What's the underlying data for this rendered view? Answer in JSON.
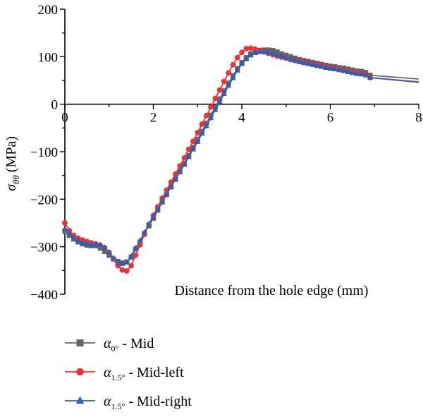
{
  "chart_data": {
    "type": "line",
    "xlabel": "Distance from the hole edge (mm)",
    "ylabel": "σθθ (MPa)",
    "ylabel_symbol": "σ",
    "ylabel_subscript": "θθ",
    "ylabel_unit": "(MPa)",
    "xlim": [
      0,
      8
    ],
    "ylim": [
      -400,
      200
    ],
    "x_ticks": [
      "0",
      "2",
      "4",
      "6",
      "8"
    ],
    "y_ticks": [
      "200",
      "100",
      "0",
      "−100",
      "−200",
      "−300",
      "−400"
    ],
    "x_axis_at_y": 0,
    "grid": false,
    "legend_position": "bottom-left, below plot",
    "series": [
      {
        "name": "α0° - Mid",
        "symbol": "α",
        "subscript": "0°",
        "suffix": " - Mid",
        "color": "#666666",
        "marker": "square",
        "x": [
          0,
          0.1,
          0.2,
          0.3,
          0.4,
          0.5,
          0.6,
          0.7,
          0.8,
          0.9,
          1.0,
          1.1,
          1.2,
          1.3,
          1.4,
          1.5,
          1.6,
          1.7,
          1.8,
          1.9,
          2.0,
          2.1,
          2.2,
          2.3,
          2.4,
          2.5,
          2.6,
          2.7,
          2.8,
          2.9,
          3.0,
          3.1,
          3.2,
          3.3,
          3.4,
          3.5,
          3.6,
          3.7,
          3.8,
          3.9,
          4.0,
          4.1,
          4.2,
          4.3,
          4.4,
          4.5,
          4.6,
          4.7,
          4.8,
          4.9,
          5.0,
          5.1,
          5.2,
          5.3,
          5.4,
          5.5,
          5.6,
          5.7,
          5.8,
          5.9,
          6.0,
          6.1,
          6.2,
          6.3,
          6.4,
          6.5,
          6.6,
          6.7,
          6.8,
          6.9,
          8.0
        ],
        "y": [
          -268,
          -276,
          -284,
          -290,
          -294,
          -297,
          -298,
          -298,
          -303,
          -310,
          -318,
          -326,
          -331,
          -334,
          -332,
          -322,
          -305,
          -290,
          -272,
          -256,
          -240,
          -223,
          -206,
          -190,
          -174,
          -158,
          -141,
          -125,
          -108,
          -91,
          -74,
          -57,
          -40,
          -23,
          -6,
          11,
          28,
          44,
          60,
          75,
          88,
          98,
          106,
          111,
          113,
          114,
          114,
          113,
          110,
          106,
          103,
          100,
          97,
          94,
          92,
          90,
          88,
          86,
          84,
          82,
          80,
          79,
          77,
          76,
          74,
          72,
          70,
          69,
          67,
          61,
          53
        ]
      },
      {
        "name": "α1.5° - Mid-left",
        "symbol": "α",
        "subscript": "1.5°",
        "suffix": " - Mid-left",
        "color": "#e8333b",
        "marker": "circle",
        "x": [
          0,
          0.1,
          0.2,
          0.3,
          0.4,
          0.5,
          0.6,
          0.7,
          0.8,
          0.9,
          1.0,
          1.1,
          1.2,
          1.3,
          1.4,
          1.5,
          1.6,
          1.7,
          1.8,
          1.9,
          2.0,
          2.1,
          2.2,
          2.3,
          2.4,
          2.5,
          2.6,
          2.7,
          2.8,
          2.9,
          3.0,
          3.1,
          3.2,
          3.3,
          3.4,
          3.5,
          3.6,
          3.7,
          3.8,
          3.9,
          4.0,
          4.1,
          4.2,
          4.3,
          4.4,
          4.5,
          4.6,
          4.7,
          4.8,
          4.9,
          5.0,
          5.1,
          5.2,
          5.3,
          5.4,
          5.5,
          5.6,
          5.7,
          5.8,
          5.9,
          6.0,
          6.1,
          6.2,
          6.3,
          6.4,
          6.5,
          6.6,
          6.7,
          6.8,
          6.9,
          8.0
        ],
        "y": [
          -250,
          -266,
          -276,
          -282,
          -286,
          -289,
          -292,
          -294,
          -297,
          -302,
          -312,
          -326,
          -340,
          -349,
          -351,
          -340,
          -318,
          -296,
          -274,
          -253,
          -234,
          -216,
          -198,
          -181,
          -164,
          -147,
          -130,
          -113,
          -95,
          -78,
          -60,
          -42,
          -24,
          -6,
          12,
          30,
          48,
          66,
          83,
          98,
          109,
          117,
          118,
          116,
          113,
          110,
          107,
          104,
          101,
          99,
          97,
          94,
          92,
          90,
          88,
          86,
          84,
          82,
          80,
          78,
          77,
          75,
          73,
          71,
          70,
          68,
          66,
          64,
          62,
          56,
          46
        ]
      },
      {
        "name": "α1.5° - Mid-right",
        "symbol": "α",
        "subscript": "1.5°",
        "suffix": " - Mid-right",
        "color": "#2f5fb3",
        "marker": "triangle",
        "x": [
          0,
          0.1,
          0.2,
          0.3,
          0.4,
          0.5,
          0.6,
          0.7,
          0.8,
          0.9,
          1.0,
          1.1,
          1.2,
          1.3,
          1.4,
          1.5,
          1.6,
          1.7,
          1.8,
          1.9,
          2.0,
          2.1,
          2.2,
          2.3,
          2.4,
          2.5,
          2.6,
          2.7,
          2.8,
          2.9,
          3.0,
          3.1,
          3.2,
          3.3,
          3.4,
          3.5,
          3.6,
          3.7,
          3.8,
          3.9,
          4.0,
          4.1,
          4.2,
          4.3,
          4.4,
          4.5,
          4.6,
          4.7,
          4.8,
          4.9,
          5.0,
          5.1,
          5.2,
          5.3,
          5.4,
          5.5,
          5.6,
          5.7,
          5.8,
          5.9,
          6.0,
          6.1,
          6.2,
          6.3,
          6.4,
          6.5,
          6.6,
          6.7,
          6.8,
          6.9,
          8.0
        ],
        "y": [
          -262,
          -272,
          -281,
          -288,
          -292,
          -294,
          -295,
          -295,
          -296,
          -302,
          -312,
          -324,
          -333,
          -336,
          -333,
          -320,
          -303,
          -287,
          -270,
          -253,
          -237,
          -221,
          -205,
          -190,
          -174,
          -158,
          -143,
          -127,
          -111,
          -95,
          -79,
          -62,
          -46,
          -29,
          -12,
          5,
          22,
          39,
          55,
          71,
          85,
          95,
          103,
          108,
          110,
          110,
          109,
          107,
          104,
          101,
          98,
          95,
          92,
          89,
          87,
          85,
          83,
          81,
          79,
          77,
          75,
          74,
          72,
          70,
          68,
          66,
          64,
          63,
          61,
          56,
          47
        ]
      }
    ]
  }
}
